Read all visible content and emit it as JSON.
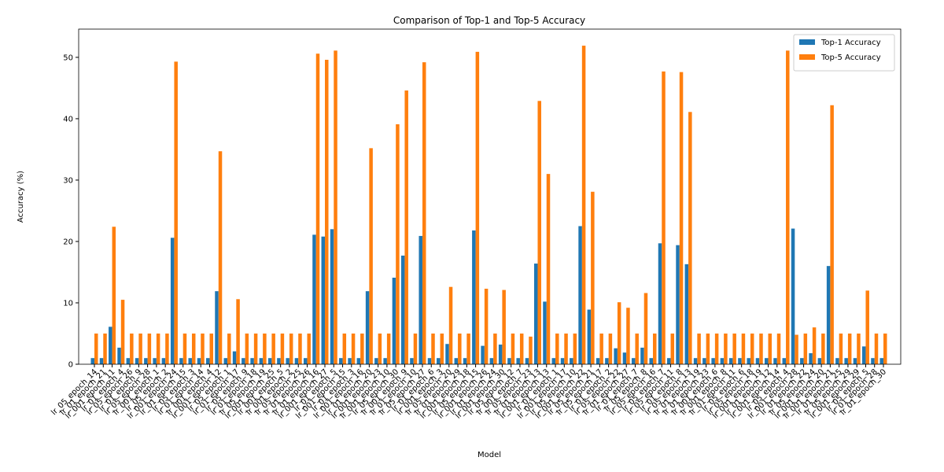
{
  "chart_data": {
    "type": "bar",
    "title": "Comparison of Top-1 and Top-5 Accuracy",
    "x_label": "Model",
    "y_label": "Accuracy (%)",
    "categories": [
      "lr_05_epoch_14",
      "lr_01_epoch_21",
      "lr_001_epoch_11",
      "lr_01_epoch_4",
      "lr_05_epoch_26",
      "lr_01_epoch_9",
      "lr_05_epoch_28",
      "lr_001_epoch_1",
      "lr_05_epoch_2",
      "lr_001_epoch_24",
      "lr_01_epoch_15",
      "lr_05_epoch_3",
      "lr_01_epoch_14",
      "lr_001_epoch_4",
      "lr_001_epoch_12",
      "lr_05_epoch_1",
      "lr_01_epoch_17",
      "lr_05_epoch_9",
      "lr_01_epoch_18",
      "lr_05_epoch_19",
      "lr_001_epoch_25",
      "lr_001_epoch_5",
      "lr_001_epoch_2",
      "lr_05_epoch_25",
      "lr_01_epoch_26",
      "lr_01_epoch_16",
      "lr_001_epoch_27",
      "lr_01_epoch_5",
      "lr_001_epoch_15",
      "lr_01_epoch_3",
      "lr_001_epoch_16",
      "lr_01_epoch_20",
      "lr_001_epoch_23",
      "lr_001_epoch_10",
      "lr_05_epoch_30",
      "lr_001_epoch_9",
      "lr_01_epoch_10",
      "lr_05_epoch_27",
      "lr_01_epoch_6",
      "lr_001_epoch_3",
      "lr_05_epoch_20",
      "lr_01_epoch_29",
      "lr_001_epoch_18",
      "lr_05_epoch_15",
      "lr_001_epoch_26",
      "lr_01_epoch_24",
      "lr_001_epoch_30",
      "lr_05_epoch_12",
      "lr_001_epoch_7",
      "lr_05_epoch_23",
      "lr_01_epoch_13",
      "lr_001_epoch_13",
      "lr_01_epoch_1",
      "lr_001_epoch_17",
      "lr_05_epoch_10",
      "lr_001_epoch_22",
      "lr_05_epoch_21",
      "lr_05_epoch_17",
      "lr_01_epoch_2",
      "lr_05_epoch_22",
      "lr_01_epoch_27",
      "lr_01_epoch_7",
      "lr_05_epoch_8",
      "lr_05_epoch_16",
      "lr_05_epoch_7",
      "lr_05_epoch_11",
      "lr_01_epoch_8",
      "lr_05_epoch_13",
      "lr_01_epoch_19",
      "lr_01_epoch_23",
      "lr_001_epoch_6",
      "lr_001_epoch_8",
      "lr_01_epoch_11",
      "lr_05_epoch_6",
      "lr_05_epoch_18",
      "lr_001_epoch_19",
      "lr_01_epoch_12",
      "lr_001_epoch_14",
      "lr_05_epoch_4",
      "lr_001_epoch_28",
      "lr_01_epoch_22",
      "lr_05_epoch_24",
      "lr_001_epoch_20",
      "lr_001_epoch_21",
      "lr_01_epoch_25",
      "lr_05_epoch_29",
      "lr_001_epoch_29",
      "lr_05_epoch_5",
      "lr_01_epoch_28",
      "lr_01_epoch_30"
    ],
    "series": [
      {
        "name": "Top-1 Accuracy",
        "color": "#1f77b4",
        "values": [
          1,
          1,
          6.1,
          2.7,
          1,
          1,
          1,
          1,
          1,
          20.6,
          1,
          1,
          1,
          1,
          11.9,
          1,
          2.1,
          1,
          1,
          1,
          1,
          1,
          1,
          1,
          1,
          21.1,
          20.8,
          22,
          1,
          1,
          1,
          11.9,
          1,
          1,
          14.1,
          17.7,
          1,
          20.9,
          1,
          1,
          3.3,
          1,
          1,
          21.8,
          3,
          1,
          3.2,
          1,
          1,
          1,
          16.4,
          10.2,
          1,
          1,
          1,
          22.5,
          8.9,
          1,
          1,
          2.6,
          1.9,
          1,
          2.7,
          1,
          19.7,
          1,
          19.4,
          16.3,
          1,
          1,
          1,
          1,
          1,
          1,
          1,
          1,
          1,
          1,
          1,
          22.1,
          1,
          1.8,
          1,
          16,
          1,
          1,
          1,
          2.9,
          1,
          1
        ]
      },
      {
        "name": "Top-5 Accuracy",
        "color": "#ff7f0e",
        "values": [
          5,
          5,
          22.4,
          10.5,
          5,
          5,
          5,
          5,
          5,
          49.3,
          5,
          5,
          5,
          5,
          34.7,
          5,
          10.6,
          5,
          5,
          5,
          5,
          5,
          5,
          5,
          5,
          50.6,
          49.6,
          51.1,
          5,
          5,
          5,
          35.2,
          5,
          5,
          39.1,
          44.6,
          5,
          49.2,
          5,
          5,
          12.6,
          5,
          5,
          50.9,
          12.3,
          5,
          12.1,
          5,
          5,
          4.5,
          42.9,
          31,
          5,
          5,
          5,
          51.9,
          28.1,
          5,
          5,
          10.1,
          9.2,
          5,
          11.6,
          5,
          47.7,
          5,
          47.6,
          41.1,
          5,
          5,
          5,
          5,
          5,
          5,
          5,
          5,
          5,
          5,
          51.1,
          4.8,
          5,
          6,
          5,
          42.2,
          5,
          5,
          5,
          12,
          5,
          5
        ]
      }
    ],
    "ylim": [
      0,
      54.6
    ],
    "yticks": [
      0,
      10,
      20,
      30,
      40,
      50
    ],
    "legend": "upper right"
  }
}
